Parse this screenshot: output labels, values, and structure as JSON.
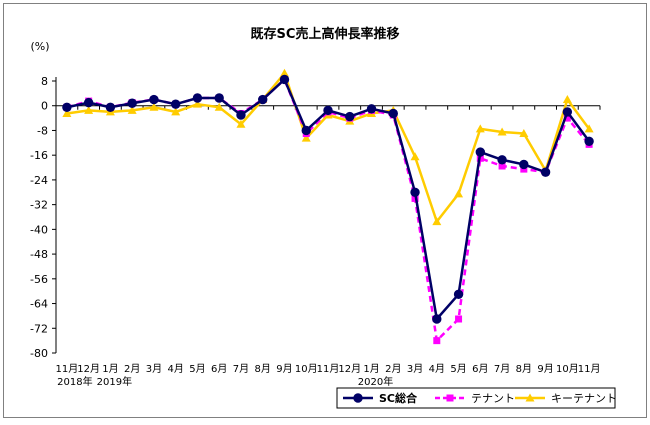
{
  "chart_data": {
    "type": "line",
    "title": "既存SC売上高伸長率推移",
    "ylabel": "(%)",
    "xlabel": "",
    "ylim": [
      -80,
      12
    ],
    "yticks": [
      8,
      0,
      -8,
      -16,
      -24,
      -32,
      -40,
      -48,
      -56,
      -64,
      -72,
      -80
    ],
    "grid": false,
    "legend_position": "bottom-right",
    "categories": [
      "11月",
      "12月",
      "1月",
      "2月",
      "3月",
      "4月",
      "5月",
      "6月",
      "7月",
      "8月",
      "9月",
      "10月",
      "11月",
      "12月",
      "1月",
      "2月",
      "3月",
      "4月",
      "5月",
      "6月",
      "7月",
      "8月",
      "9月",
      "10月",
      "11月"
    ],
    "year_labels": [
      {
        "index": 0,
        "label": "2018年"
      },
      {
        "index": 2,
        "label": "2019年"
      },
      {
        "index": 14,
        "label": "2020年"
      }
    ],
    "series": [
      {
        "name": "SC総合",
        "color": "#000066",
        "style": "solid",
        "marker": "circle",
        "values": [
          -0.5,
          1.0,
          -0.5,
          0.8,
          2.0,
          0.5,
          2.5,
          2.5,
          -3.0,
          2.0,
          8.5,
          -8.0,
          -1.5,
          -3.5,
          -1.0,
          -2.5,
          -28.0,
          -69.0,
          -61.0,
          -15.0,
          -17.5,
          -19.0,
          -21.5,
          -2.0,
          -11.5
        ]
      },
      {
        "name": "テナント",
        "color": "#ff00ff",
        "style": "dashed",
        "marker": "square",
        "values": [
          -0.5,
          1.5,
          -0.5,
          1.0,
          2.0,
          0.5,
          2.5,
          2.5,
          -2.5,
          2.0,
          8.5,
          -9.0,
          -2.0,
          -4.0,
          -1.5,
          -3.0,
          -30.0,
          -76.0,
          -69.0,
          -17.0,
          -19.5,
          -20.5,
          -21.5,
          -4.0,
          -12.5
        ]
      },
      {
        "name": "キーテナント",
        "color": "#ffcc00",
        "style": "solid",
        "marker": "triangle",
        "values": [
          -2.5,
          -1.5,
          -2.0,
          -1.5,
          -0.5,
          -2.0,
          0.5,
          -0.5,
          -6.0,
          2.0,
          10.5,
          -10.5,
          -3.0,
          -5.0,
          -2.5,
          -1.5,
          -16.5,
          -37.5,
          -28.5,
          -7.5,
          -8.5,
          -9.0,
          -21.0,
          2.0,
          -7.5
        ]
      }
    ]
  }
}
